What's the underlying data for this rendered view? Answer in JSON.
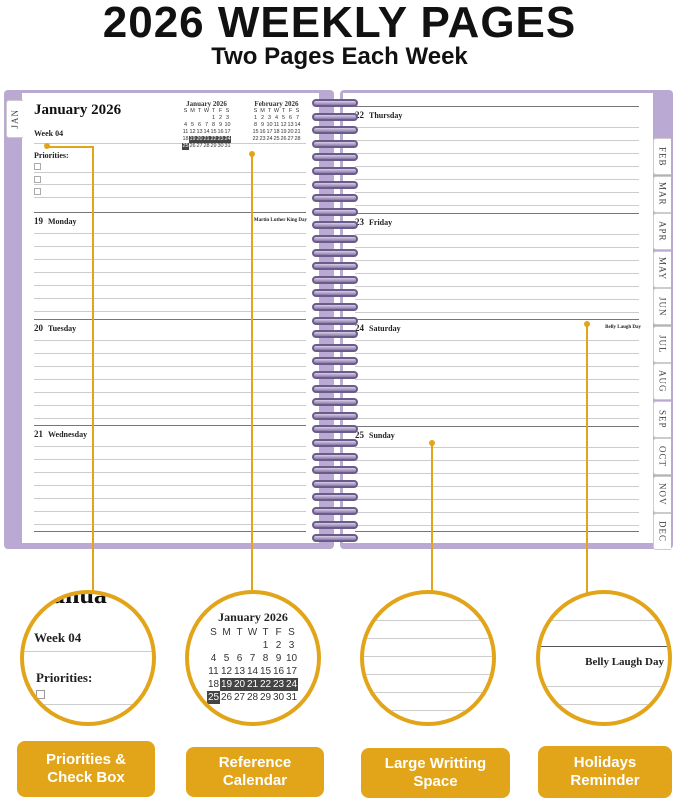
{
  "header": {
    "title": "2026 WEEKLY PAGES",
    "subtitle": "Two Pages Each Week"
  },
  "left_page": {
    "tab": "JAN",
    "month_title": "January 2026",
    "week": "Week 04",
    "priorities_label": "Priorities:",
    "days": [
      {
        "num": "19",
        "name": "Monday",
        "holiday": "Martin Luther King Day"
      },
      {
        "num": "20",
        "name": "Tuesday",
        "holiday": ""
      },
      {
        "num": "21",
        "name": "Wednesday",
        "holiday": ""
      }
    ]
  },
  "right_page": {
    "days": [
      {
        "num": "22",
        "name": "Thursday",
        "holiday": ""
      },
      {
        "num": "23",
        "name": "Friday",
        "holiday": ""
      },
      {
        "num": "24",
        "name": "Saturday",
        "holiday": "Belly Laugh Day"
      },
      {
        "num": "25",
        "name": "Sunday",
        "holiday": ""
      }
    ],
    "tabs": [
      "FEB",
      "MAR",
      "APR",
      "MAY",
      "JUN",
      "JUL",
      "AUG",
      "SEP",
      "OCT",
      "NOV",
      "DEC"
    ]
  },
  "mini_calendars": [
    {
      "title": "January 2026",
      "weekdays": [
        "S",
        "M",
        "T",
        "W",
        "T",
        "F",
        "S"
      ],
      "days": [
        "",
        "",
        "",
        "",
        "1",
        "2",
        "3",
        "4",
        "5",
        "6",
        "7",
        "8",
        "9",
        "10",
        "11",
        "12",
        "13",
        "14",
        "15",
        "16",
        "17",
        "18",
        "19",
        "20",
        "21",
        "22",
        "23",
        "24",
        "25",
        "26",
        "27",
        "28",
        "29",
        "30",
        "31"
      ],
      "highlight": [
        "19",
        "20",
        "21",
        "22",
        "23",
        "24",
        "25"
      ]
    },
    {
      "title": "February 2026",
      "weekdays": [
        "S",
        "M",
        "T",
        "W",
        "T",
        "F",
        "S"
      ],
      "days": [
        "1",
        "2",
        "3",
        "4",
        "5",
        "6",
        "7",
        "8",
        "9",
        "10",
        "11",
        "12",
        "13",
        "14",
        "15",
        "16",
        "17",
        "18",
        "19",
        "20",
        "21",
        "22",
        "23",
        "24",
        "25",
        "26",
        "27",
        "28"
      ],
      "highlight": []
    }
  ],
  "zoom": {
    "priorities": {
      "partial_title": "anua",
      "week": "Week 04",
      "label": "Priorities:"
    },
    "calendar": {
      "title": "January 2026"
    },
    "holiday": {
      "text": "Belly Laugh Day"
    }
  },
  "badges": [
    {
      "label": "Priorities & Check Box"
    },
    {
      "label": "Reference Calendar"
    },
    {
      "label": "Large Writting Space"
    },
    {
      "label": "Holidays Reminder"
    }
  ],
  "colors": {
    "accent": "#e2a51a",
    "cover": "#b9a9d3"
  }
}
